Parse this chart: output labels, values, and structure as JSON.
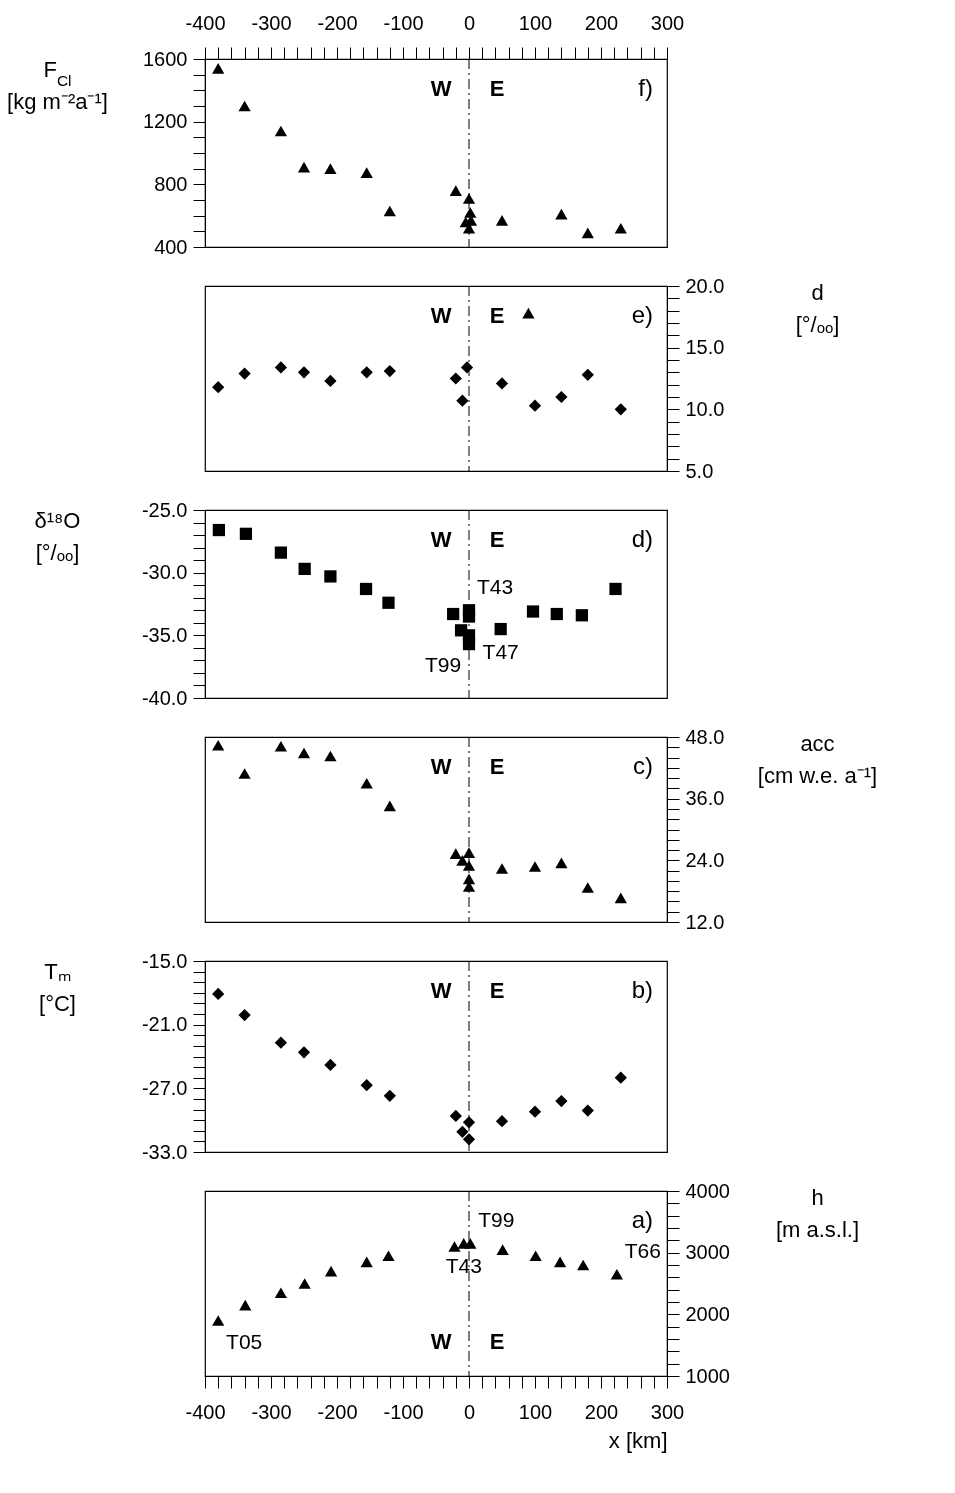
{
  "chart_data": [
    {
      "type": "scatter",
      "ylabel": "F$_{Cl}$ [kg m⁻²a⁻¹]",
      "xlim": [
        -400,
        300
      ],
      "xticks": [
        -400,
        {
          "value": -380,
          "label": null
        },
        {
          "value": -360,
          "label": null
        },
        {
          "value": -340,
          "label": null
        },
        {
          "value": -320,
          "label": null
        },
        -300,
        {
          "value": -280,
          "label": null
        },
        {
          "value": -260,
          "label": null
        },
        {
          "value": -240,
          "label": null
        },
        {
          "value": -220,
          "label": null
        },
        -200,
        {
          "value": -180,
          "label": null
        },
        {
          "value": -160,
          "label": null
        },
        {
          "value": -140,
          "label": null
        },
        {
          "value": -120,
          "label": null
        },
        -100,
        {
          "value": -80,
          "label": null
        },
        {
          "value": -60,
          "label": null
        },
        {
          "value": -40,
          "label": null
        },
        {
          "value": -20,
          "label": null
        },
        0,
        {
          "value": 20,
          "label": null
        },
        {
          "value": 40,
          "label": null
        },
        {
          "value": 60,
          "label": null
        },
        {
          "value": 80,
          "label": null
        },
        100,
        {
          "value": 120,
          "label": null
        },
        {
          "value": 140,
          "label": null
        },
        {
          "value": 160,
          "label": null
        },
        {
          "value": 180,
          "label": null
        },
        200,
        {
          "value": 220,
          "label": null
        },
        {
          "value": 240,
          "label": null
        },
        {
          "value": 260,
          "label": null
        },
        {
          "value": 280,
          "label": null
        },
        300
      ],
      "ylim": [
        400,
        1600
      ],
      "yticks": [
        400,
        {
          "value": 500,
          "label": null
        },
        {
          "value": 600,
          "label": null
        },
        {
          "value": 700,
          "label": null
        },
        800,
        {
          "value": 900,
          "label": null
        },
        {
          "value": 1000,
          "label": null
        },
        {
          "value": 1100,
          "label": null
        },
        1200,
        {
          "value": 1300,
          "label": null
        },
        {
          "value": 1400,
          "label": null
        },
        {
          "value": 1500,
          "label": null
        },
        1600
      ],
      "grid": false,
      "marker": "triangle",
      "series": [
        {
          "color": "#000000",
          "x": [
            -380,
            -340,
            -285,
            -250,
            -210,
            -155,
            -120,
            -20,
            -5,
            0,
            2,
            3,
            0,
            50,
            140,
            180,
            230
          ],
          "values": [
            1540,
            1300,
            1140,
            910,
            900,
            875,
            630,
            760,
            560,
            710,
            620,
            570,
            520,
            570,
            610,
            490,
            520
          ]
        }
      ],
      "ref_lines": [
        {
          "axis": "x",
          "value": 0,
          "line_style": "dashed"
        }
      ],
      "annotations": [
        "W",
        "E",
        "f)"
      ]
    },
    {
      "type": "scatter",
      "ylabel": "d [°/ₒₒ]",
      "xlim": [
        -400,
        300
      ],
      "tick_labels": "y",
      "ylim": [
        5,
        20
      ],
      "yticks": [
        {
          "value": 5,
          "label": "5.0"
        },
        {
          "value": 6,
          "label": null
        },
        {
          "value": 7,
          "label": null
        },
        {
          "value": 8,
          "label": null
        },
        {
          "value": 9,
          "label": null
        },
        {
          "value": 10,
          "label": "10.0"
        },
        {
          "value": 11,
          "label": null
        },
        {
          "value": 12,
          "label": null
        },
        {
          "value": 13,
          "label": null
        },
        {
          "value": 14,
          "label": null
        },
        {
          "value": 15,
          "label": "15.0"
        },
        {
          "value": 16,
          "label": null
        },
        {
          "value": 17,
          "label": null
        },
        {
          "value": 18,
          "label": null
        },
        {
          "value": 19,
          "label": null
        },
        {
          "value": 20,
          "label": "20.0"
        }
      ],
      "grid": false,
      "marker": "diamond",
      "series": [
        {
          "color": "#000000",
          "x": [
            -380,
            -340,
            -285,
            -250,
            -210,
            -155,
            -120,
            -20,
            -10,
            -3,
            50,
            100,
            140,
            180,
            230
          ],
          "values": [
            11.8,
            12.9,
            13.4,
            13.0,
            12.3,
            13.0,
            13.1,
            12.5,
            10.7,
            13.4,
            12.1,
            10.3,
            11.0,
            12.8,
            10.0
          ]
        },
        {
          "color": "#000000",
          "marker": "triangle",
          "x": [
            90
          ],
          "values": [
            17.8
          ]
        }
      ],
      "ref_lines": [
        {
          "axis": "x",
          "value": 0,
          "line_style": "dashed"
        }
      ],
      "annotations": [
        "W",
        "E",
        "e)"
      ]
    },
    {
      "type": "scatter",
      "ylabel": "δ¹⁸O [°/ₒₒ]",
      "xlim": [
        -400,
        300
      ],
      "tick_labels": "y",
      "ylim": [
        -40,
        -25
      ],
      "yticks": [
        {
          "value": -40,
          "label": "-40.0"
        },
        {
          "value": -39,
          "label": null
        },
        {
          "value": -38,
          "label": null
        },
        {
          "value": -37,
          "label": null
        },
        {
          "value": -36,
          "label": null
        },
        {
          "value": -35,
          "label": "-35.0"
        },
        {
          "value": -34,
          "label": null
        },
        {
          "value": -33,
          "label": null
        },
        {
          "value": -32,
          "label": null
        },
        {
          "value": -31,
          "label": null
        },
        {
          "value": -30,
          "label": "-30.0"
        },
        {
          "value": -29,
          "label": null
        },
        {
          "value": -28,
          "label": null
        },
        {
          "value": -27,
          "label": null
        },
        {
          "value": -26,
          "label": null
        },
        {
          "value": -25,
          "label": "-25.0"
        }
      ],
      "grid": false,
      "marker": "square",
      "series": [
        {
          "color": "#000000",
          "x": [
            -379,
            -338,
            -285,
            -249,
            -210,
            -156,
            -122,
            -24,
            -12,
            0,
            0,
            0,
            0,
            48,
            97,
            133,
            171,
            222
          ],
          "values": [
            -26.6,
            -26.9,
            -28.4,
            -29.7,
            -30.3,
            -31.3,
            -32.4,
            -33.3,
            -34.6,
            -33.0,
            -33.5,
            -35.0,
            -35.7,
            -34.5,
            -33.1,
            -33.3,
            -33.4,
            -31.3
          ]
        }
      ],
      "ref_lines": [
        {
          "axis": "x",
          "value": 0,
          "line_style": "dashed"
        }
      ],
      "annotations": [
        "W",
        "E",
        "d)",
        {
          "text": "T43",
          "x": 0,
          "y": -33.0
        },
        {
          "text": "T47",
          "x": 48,
          "y": -34.5
        },
        {
          "text": "T99",
          "x": 0,
          "y": -35.7
        }
      ]
    },
    {
      "type": "scatter",
      "ylabel": "acc [cm w.e. a⁻¹]",
      "xlim": [
        -400,
        300
      ],
      "tick_labels": "y",
      "ylim": [
        12,
        48
      ],
      "yticks": [
        {
          "value": 12,
          "label": "12.0"
        },
        {
          "value": 14,
          "label": null
        },
        {
          "value": 16,
          "label": null
        },
        {
          "value": 18,
          "label": null
        },
        {
          "value": 20,
          "label": null
        },
        {
          "value": 22,
          "label": null
        },
        {
          "value": 24,
          "label": "24.0"
        },
        {
          "value": 26,
          "label": null
        },
        {
          "value": 28,
          "label": null
        },
        {
          "value": 30,
          "label": null
        },
        {
          "value": 32,
          "label": null
        },
        {
          "value": 34,
          "label": null
        },
        {
          "value": 36,
          "label": "36.0"
        },
        {
          "value": 38,
          "label": null
        },
        {
          "value": 40,
          "label": null
        },
        {
          "value": 42,
          "label": null
        },
        {
          "value": 44,
          "label": null
        },
        {
          "value": 46,
          "label": null
        },
        {
          "value": 48,
          "label": "48.0"
        }
      ],
      "grid": false,
      "marker": "triangle",
      "series": [
        {
          "color": "#000000",
          "x": [
            -380,
            -340,
            -285,
            -250,
            -210,
            -155,
            -120,
            -20,
            -10,
            0,
            0,
            0,
            0,
            50,
            100,
            140,
            180,
            230
          ],
          "values": [
            46.4,
            40.9,
            46.2,
            44.9,
            44.3,
            39.0,
            34.6,
            25.3,
            24.0,
            25.5,
            23.0,
            20.4,
            18.9,
            22.4,
            22.8,
            23.5,
            18.7,
            16.7
          ]
        }
      ],
      "ref_lines": [
        {
          "axis": "x",
          "value": 0,
          "line_style": "dashed"
        }
      ],
      "annotations": [
        "W",
        "E",
        "c)"
      ]
    },
    {
      "type": "scatter",
      "ylabel": "Tₘ [°C]",
      "xlim": [
        -400,
        300
      ],
      "tick_labels": "y",
      "ylim": [
        -33,
        -15
      ],
      "yticks": [
        {
          "value": -33,
          "label": "-33.0"
        },
        {
          "value": -32,
          "label": null
        },
        {
          "value": -31,
          "label": null
        },
        {
          "value": -30,
          "label": null
        },
        {
          "value": -29,
          "label": null
        },
        {
          "value": -28,
          "label": null
        },
        {
          "value": -27,
          "label": "-27.0"
        },
        {
          "value": -26,
          "label": null
        },
        {
          "value": -25,
          "label": null
        },
        {
          "value": -24,
          "label": null
        },
        {
          "value": -23,
          "label": null
        },
        {
          "value": -22,
          "label": null
        },
        {
          "value": -21,
          "label": "-21.0"
        },
        {
          "value": -20,
          "label": null
        },
        {
          "value": -19,
          "label": null
        },
        {
          "value": -18,
          "label": null
        },
        {
          "value": -17,
          "label": null
        },
        {
          "value": -16,
          "label": null
        },
        {
          "value": -15,
          "label": "-15.0"
        }
      ],
      "grid": false,
      "marker": "diamond",
      "series": [
        {
          "color": "#000000",
          "x": [
            -380,
            -340,
            -285,
            -250,
            -210,
            -155,
            -120,
            -20,
            -10,
            0,
            0,
            50,
            100,
            140,
            180,
            230
          ],
          "values": [
            -18.1,
            -20.1,
            -22.7,
            -23.6,
            -24.8,
            -26.7,
            -27.7,
            -29.6,
            -31.1,
            -30.2,
            -31.8,
            -30.1,
            -29.2,
            -28.2,
            -29.1,
            -26.0
          ]
        }
      ],
      "ref_lines": [
        {
          "axis": "x",
          "value": 0,
          "line_style": "dashed"
        }
      ],
      "annotations": [
        "W",
        "E",
        "b)"
      ]
    },
    {
      "type": "scatter",
      "xlabel": "x [km]",
      "ylabel": "h [m a.s.l.]",
      "xlim": [
        -400,
        300
      ],
      "xticks": [
        -400,
        {
          "value": -380,
          "label": null
        },
        {
          "value": -360,
          "label": null
        },
        {
          "value": -340,
          "label": null
        },
        {
          "value": -320,
          "label": null
        },
        -300,
        {
          "value": -280,
          "label": null
        },
        {
          "value": -260,
          "label": null
        },
        {
          "value": -240,
          "label": null
        },
        {
          "value": -220,
          "label": null
        },
        -200,
        {
          "value": -180,
          "label": null
        },
        {
          "value": -160,
          "label": null
        },
        {
          "value": -140,
          "label": null
        },
        {
          "value": -120,
          "label": null
        },
        -100,
        {
          "value": -80,
          "label": null
        },
        {
          "value": -60,
          "label": null
        },
        {
          "value": -40,
          "label": null
        },
        {
          "value": -20,
          "label": null
        },
        0,
        {
          "value": 20,
          "label": null
        },
        {
          "value": 40,
          "label": null
        },
        {
          "value": 60,
          "label": null
        },
        {
          "value": 80,
          "label": null
        },
        100,
        {
          "value": 120,
          "label": null
        },
        {
          "value": 140,
          "label": null
        },
        {
          "value": 160,
          "label": null
        },
        {
          "value": 180,
          "label": null
        },
        200,
        {
          "value": 220,
          "label": null
        },
        {
          "value": 240,
          "label": null
        },
        {
          "value": 260,
          "label": null
        },
        {
          "value": 280,
          "label": null
        },
        300
      ],
      "ylim": [
        1000,
        4000
      ],
      "yticks": [
        1000,
        {
          "value": 1200,
          "label": null
        },
        {
          "value": 1400,
          "label": null
        },
        {
          "value": 1600,
          "label": null
        },
        {
          "value": 1800,
          "label": null
        },
        2000,
        {
          "value": 2200,
          "label": null
        },
        {
          "value": 2400,
          "label": null
        },
        {
          "value": 2600,
          "label": null
        },
        {
          "value": 2800,
          "label": null
        },
        3000,
        {
          "value": 3200,
          "label": null
        },
        {
          "value": 3400,
          "label": null
        },
        {
          "value": 3600,
          "label": null
        },
        {
          "value": 3800,
          "label": null
        },
        4000
      ],
      "grid": false,
      "marker": "triangle",
      "series": [
        {
          "color": "#000000",
          "x": [
            -380,
            -339,
            -285,
            -249,
            -209,
            -155,
            -122,
            -22,
            -8,
            2,
            51,
            101,
            138,
            173,
            224
          ],
          "values": [
            1900,
            2150,
            2350,
            2500,
            2700,
            2850,
            2950,
            3100,
            3150,
            3150,
            3050,
            2950,
            2850,
            2800,
            2650
          ]
        }
      ],
      "ref_lines": [
        {
          "axis": "x",
          "value": 0,
          "line_style": "dashed"
        }
      ],
      "annotations": [
        "W",
        "E",
        "a)",
        {
          "text": "T99",
          "x": 2,
          "y": 3150
        },
        {
          "text": "T43",
          "x": -8,
          "y": 3150
        },
        {
          "text": "T66",
          "x": 224,
          "y": 2650
        },
        {
          "text": "T05",
          "x": -380,
          "y": 1900
        }
      ]
    }
  ]
}
